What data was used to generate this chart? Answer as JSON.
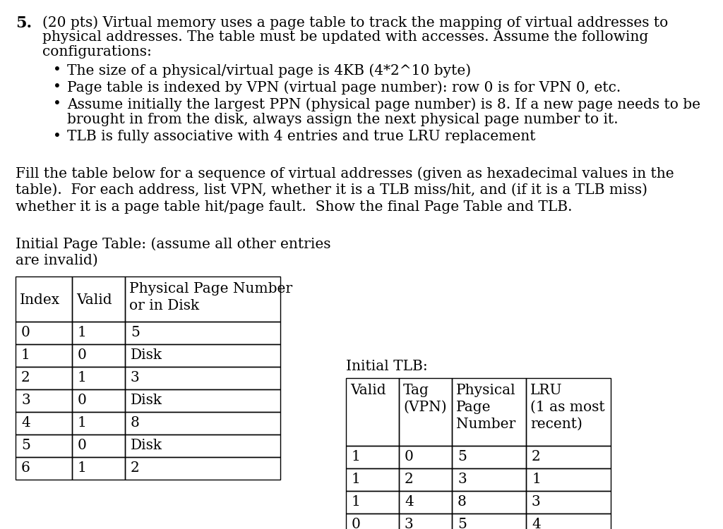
{
  "background_color": "#ffffff",
  "page_table_headers": [
    "Index",
    "Valid",
    "Physical Page Number\nor in Disk"
  ],
  "page_table_rows": [
    [
      "0",
      "1",
      "5"
    ],
    [
      "1",
      "0",
      "Disk"
    ],
    [
      "2",
      "1",
      "3"
    ],
    [
      "3",
      "0",
      "Disk"
    ],
    [
      "4",
      "1",
      "8"
    ],
    [
      "5",
      "0",
      "Disk"
    ],
    [
      "6",
      "1",
      "2"
    ]
  ],
  "tlb_title": "Initial TLB:",
  "tlb_headers": [
    "Valid",
    "Tag\n(VPN)",
    "Physical\nPage\nNumber",
    "LRU\n(1 as most\nrecent)"
  ],
  "tlb_rows": [
    [
      "1",
      "0",
      "5",
      "2"
    ],
    [
      "1",
      "2",
      "3",
      "1"
    ],
    [
      "1",
      "4",
      "8",
      "3"
    ],
    [
      "0",
      "3",
      "5",
      "4"
    ]
  ]
}
